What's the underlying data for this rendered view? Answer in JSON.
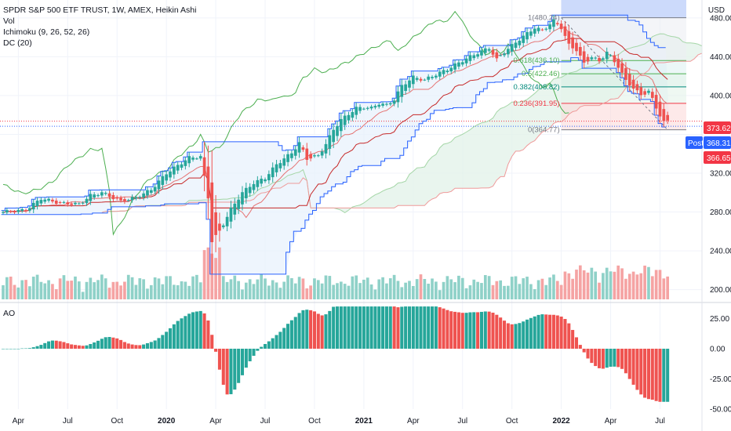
{
  "header": {
    "symbol_line": "SPDR S&P 500 ETF TRUST, 1W, AMEX, Heikin Ashi",
    "indicators": [
      "Vol",
      "Ichimoku (9, 26, 52, 26)",
      "DC (20)"
    ],
    "currency": "USD"
  },
  "colors": {
    "up": "#26a69a",
    "down": "#ef5350",
    "donchian": "#2962ff",
    "ichimoku_fast": "#4caf50",
    "ichimoku_slow": "#ef5350",
    "cloud": "#e8f2fc",
    "badge_last": "#f23645",
    "badge_post": "#2962ff"
  },
  "price_labels": {
    "last_close": "373.62",
    "post_tag": "Post",
    "post_price": "368.31",
    "low_price": "366.65"
  },
  "fib_labels": [
    "1(480.24)",
    "0.618(436.10)",
    "0.5(422.46)",
    "0.382(408.82)",
    "0.236(391.95)",
    "0(364.77)"
  ],
  "ao_label": "AO",
  "chart_data": [
    {
      "type": "candlestick",
      "title": "",
      "ylabel": "USD",
      "ylim": [
        190,
        492
      ],
      "y_ticks": [
        200,
        240,
        280,
        320,
        360,
        400,
        440,
        480
      ],
      "y_tick_labels": [
        "200.00",
        "240.00",
        "280.00",
        "320.00",
        "",
        "400.00",
        "440.00",
        "480.00"
      ],
      "x_tick_labels": [
        "Apr",
        "Jul",
        "Oct",
        "2020",
        "Apr",
        "Jul",
        "Oct",
        "2021",
        "Apr",
        "Jul",
        "Oct",
        "2022",
        "Apr",
        "Jul"
      ],
      "x_ticks_week": [
        4,
        17,
        30,
        43,
        56,
        69,
        82,
        95,
        108,
        121,
        134,
        147,
        160,
        173
      ],
      "close_anchors": [
        [
          0,
          280
        ],
        [
          6,
          282
        ],
        [
          10,
          294
        ],
        [
          15,
          289
        ],
        [
          20,
          288
        ],
        [
          23,
          297
        ],
        [
          26,
          300
        ],
        [
          31,
          291
        ],
        [
          35,
          295
        ],
        [
          39,
          303
        ],
        [
          43,
          320
        ],
        [
          49,
          336
        ],
        [
          52,
          337
        ],
        [
          54,
          295
        ],
        [
          55,
          250
        ],
        [
          57,
          260
        ],
        [
          60,
          283
        ],
        [
          63,
          300
        ],
        [
          66,
          310
        ],
        [
          69,
          315
        ],
        [
          72,
          329
        ],
        [
          76,
          341
        ],
        [
          78,
          351
        ],
        [
          80,
          335
        ],
        [
          83,
          338
        ],
        [
          85,
          350
        ],
        [
          87,
          365
        ],
        [
          89,
          375
        ],
        [
          91,
          381
        ],
        [
          93,
          387
        ],
        [
          95,
          388
        ],
        [
          97,
          387
        ],
        [
          99,
          392
        ],
        [
          101,
          390
        ],
        [
          103,
          396
        ],
        [
          105,
          410
        ],
        [
          108,
          419
        ],
        [
          111,
          416
        ],
        [
          113,
          420
        ],
        [
          117,
          427
        ],
        [
          121,
          436
        ],
        [
          125,
          444
        ],
        [
          128,
          449
        ],
        [
          130,
          437
        ],
        [
          132,
          445
        ],
        [
          136,
          458
        ],
        [
          140,
          470
        ],
        [
          142,
          467
        ],
        [
          145,
          477
        ],
        [
          147,
          470
        ],
        [
          149,
          452
        ],
        [
          151,
          447
        ],
        [
          153,
          433
        ],
        [
          155,
          440
        ],
        [
          157,
          435
        ],
        [
          159,
          445
        ],
        [
          160,
          440
        ],
        [
          162,
          430
        ],
        [
          164,
          415
        ],
        [
          166,
          408
        ],
        [
          168,
          400
        ],
        [
          170,
          405
        ],
        [
          172,
          387
        ],
        [
          174,
          373
        ]
      ],
      "volume": {
        "ylim": [
          0,
          400
        ],
        "note": "relative weekly volume bars"
      },
      "donchian_period": 20,
      "ichimoku": [
        9,
        26,
        52,
        26
      ],
      "fibonacci": {
        "high": 480.24,
        "low": 364.77,
        "levels": [
          1,
          0.618,
          0.5,
          0.382,
          0.236,
          0
        ]
      }
    },
    {
      "type": "bar",
      "title": "AO",
      "ylim": [
        -50,
        37
      ],
      "y_ticks": [
        25,
        0,
        -25,
        -50
      ],
      "y_tick_labels": [
        "25.00",
        "0.00",
        "-25.00",
        "-50.00"
      ],
      "series": [
        {
          "name": "AO",
          "derived": "awesome oscillator of price series"
        }
      ]
    }
  ]
}
